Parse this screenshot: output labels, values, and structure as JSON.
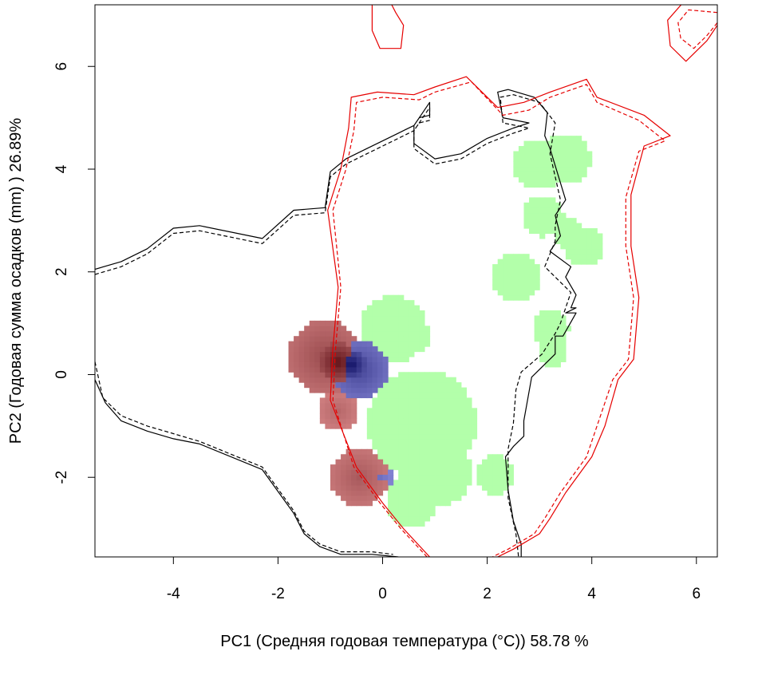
{
  "chart_data": {
    "type": "heatmap",
    "title": "",
    "xlabel": "PC1 (Средняя годовая температура (°C)) 58.78 %",
    "ylabel": "PC2 (Годовая сумма осадков  (mm) ) 26.89%",
    "xlim": [
      -5.5,
      6.4
    ],
    "ylim": [
      -3.55,
      7.2
    ],
    "x_ticks": [
      "-4",
      "-2",
      "0",
      "2",
      "4",
      "6"
    ],
    "x_tick_values": [
      -4,
      -2,
      0,
      2,
      4,
      6
    ],
    "y_ticks": [
      "-2",
      "0",
      "2",
      "4",
      "6"
    ],
    "y_tick_values": [
      -2,
      0,
      2,
      4,
      6
    ],
    "grid": false,
    "legend": "none",
    "colors": {
      "stable": "#b3ffaa",
      "expansion_low": "#e89898",
      "expansion_high": "#5a0c12",
      "unfilling_low": "#a0a0ee",
      "unfilling_high": "#0a0a5e",
      "envelope_a": "#000000",
      "envelope_b": "#e60000"
    },
    "stable_blobs": [
      {
        "x": 3.0,
        "y": 4.1,
        "r": 0.5
      },
      {
        "x": 3.5,
        "y": 4.2,
        "r": 0.48
      },
      {
        "x": 3.05,
        "y": 3.1,
        "r": 0.4
      },
      {
        "x": 3.85,
        "y": 2.5,
        "r": 0.38
      },
      {
        "x": 3.55,
        "y": 2.75,
        "r": 0.3
      },
      {
        "x": 2.55,
        "y": 1.9,
        "r": 0.45
      },
      {
        "x": 3.2,
        "y": 0.9,
        "r": 0.35
      },
      {
        "x": 3.25,
        "y": 0.45,
        "r": 0.3
      },
      {
        "x": 0.2,
        "y": 0.9,
        "r": 0.65
      },
      {
        "x": 0.6,
        "y": 0.75,
        "r": 0.35
      },
      {
        "x": 0.75,
        "y": -0.95,
        "r": 1.05
      },
      {
        "x": 1.05,
        "y": -1.9,
        "r": 0.65
      },
      {
        "x": 2.15,
        "y": -1.95,
        "r": 0.38
      },
      {
        "x": 0.55,
        "y": -2.45,
        "r": 0.5
      }
    ],
    "expansion_blobs": [
      {
        "x": -1.1,
        "y": 0.35,
        "r": 0.7,
        "i": 0.55
      },
      {
        "x": -0.85,
        "y": 0.25,
        "r": 0.38,
        "i": 0.95
      },
      {
        "x": -0.85,
        "y": -0.7,
        "r": 0.38,
        "i": 0.35
      },
      {
        "x": -0.45,
        "y": -2.0,
        "r": 0.55,
        "i": 0.45
      }
    ],
    "unfilling_blobs": [
      {
        "x": -0.45,
        "y": 0.1,
        "r": 0.55,
        "i": 0.6
      },
      {
        "x": -0.6,
        "y": 0.2,
        "r": 0.3,
        "i": 0.95
      },
      {
        "x": -0.1,
        "y": -2.0,
        "r": 0.3,
        "i": 0.35
      }
    ],
    "envelopes": [
      {
        "name": "",
        "color": "#000000",
        "dash": "solid",
        "x": [
          -5.5,
          -5.0,
          -4.5,
          -4.0,
          -3.5,
          -2.3,
          -1.7,
          -1.1,
          -1.0,
          -0.7,
          -0.3,
          0.3,
          0.6,
          0.7,
          0.9,
          0.9,
          0.6,
          0.6,
          1.0,
          1.5,
          2.0,
          2.5,
          2.8,
          2.3,
          2.2,
          2.4,
          2.9,
          3.15,
          3.1,
          3.2,
          3.5,
          3.3,
          3.4,
          3.2,
          3.6,
          3.5,
          3.7,
          3.6,
          3.7,
          3.5,
          3.7,
          3.7,
          3.45,
          3.3,
          3.3,
          2.85,
          2.7,
          2.7,
          2.5,
          2.35,
          2.4,
          2.5,
          2.65,
          2.65
        ],
        "y": [
          2.05,
          2.2,
          2.45,
          2.85,
          2.9,
          2.65,
          3.2,
          3.25,
          3.95,
          4.2,
          4.4,
          4.7,
          4.85,
          5.0,
          5.05,
          5.3,
          4.85,
          4.5,
          4.2,
          4.3,
          4.6,
          4.8,
          4.9,
          5.0,
          5.5,
          5.55,
          5.4,
          5.1,
          4.65,
          4.4,
          3.4,
          3.1,
          2.7,
          2.4,
          2.1,
          1.9,
          1.55,
          1.3,
          1.3,
          1.2,
          1.2,
          1.2,
          0.75,
          0.75,
          0.4,
          -0.05,
          -0.9,
          -1.2,
          -1.4,
          -1.6,
          -2.25,
          -2.85,
          -3.3,
          -3.55
        ]
      },
      {
        "name": "",
        "color": "#000000",
        "dash": "dashed",
        "x": [
          -5.5,
          -5.0,
          -4.5,
          -4.0,
          -3.5,
          -2.3,
          -1.7,
          -1.1,
          -1.0,
          -0.7,
          -0.3,
          0.3,
          0.6,
          0.7,
          0.9,
          0.9,
          0.6,
          0.6,
          1.0,
          1.5,
          2.0,
          2.5,
          2.8,
          2.3,
          2.25,
          2.5,
          3.0,
          3.3,
          3.2,
          3.4,
          3.3,
          3.3,
          3.1,
          3.6,
          3.5,
          3.4,
          3.3,
          3.05,
          2.65,
          2.55,
          2.5,
          2.4,
          2.4,
          2.55,
          2.6
        ],
        "y": [
          1.95,
          2.1,
          2.35,
          2.75,
          2.8,
          2.55,
          3.1,
          3.15,
          3.85,
          4.1,
          4.3,
          4.6,
          4.75,
          4.9,
          4.95,
          5.2,
          4.75,
          4.4,
          4.1,
          4.2,
          4.5,
          4.7,
          4.8,
          4.9,
          5.4,
          5.45,
          5.3,
          4.9,
          4.3,
          3.4,
          2.9,
          2.6,
          2.1,
          1.6,
          1.3,
          1.0,
          0.8,
          0.4,
          0.05,
          -0.3,
          -0.95,
          -1.45,
          -2.4,
          -3.1,
          -3.55
        ]
      },
      {
        "name": "",
        "color": "#000000",
        "dash": "solid",
        "x": [
          -5.5,
          -5.3,
          -5.0,
          -4.5,
          -4.0,
          -3.5,
          -2.3,
          -1.7,
          -1.5,
          -1.2,
          -0.8,
          -0.2,
          0.3
        ],
        "y": [
          -0.1,
          -0.55,
          -0.9,
          -1.1,
          -1.25,
          -1.35,
          -1.85,
          -2.7,
          -3.1,
          -3.35,
          -3.5,
          -3.5,
          -3.55
        ]
      },
      {
        "name": "",
        "color": "#000000",
        "dash": "dashed",
        "x": [
          -5.5,
          -5.35,
          -5.0,
          -4.5,
          -4.0,
          -3.5,
          -2.3,
          -1.7,
          -1.5,
          -1.2,
          -0.8,
          -0.2,
          0.2
        ],
        "y": [
          0.25,
          -0.45,
          -0.8,
          -1.0,
          -1.15,
          -1.3,
          -1.8,
          -2.65,
          -3.05,
          -3.3,
          -3.45,
          -3.45,
          -3.5
        ]
      },
      {
        "name": "",
        "color": "#e60000",
        "dash": "solid",
        "x": [
          0.9,
          0.4,
          0.0,
          -0.5,
          -1.0,
          -0.95,
          -0.85,
          -1.05,
          -0.8,
          -0.65,
          -0.6,
          -0.1,
          0.6,
          1.0,
          1.6,
          2.2,
          2.7,
          3.2,
          3.9,
          4.1,
          5.0,
          5.5,
          5.0,
          4.75,
          4.75,
          4.9,
          4.8,
          4.5,
          4.25,
          4.0,
          3.5,
          3.2,
          3.0,
          2.5,
          2.2
        ],
        "y": [
          -3.55,
          -3.0,
          -2.5,
          -1.8,
          -0.5,
          0.5,
          1.7,
          3.2,
          4.0,
          4.8,
          5.4,
          5.5,
          5.45,
          5.6,
          5.8,
          5.2,
          5.3,
          5.5,
          5.75,
          5.4,
          5.05,
          4.65,
          4.45,
          3.5,
          2.5,
          1.5,
          0.3,
          -0.1,
          -1.0,
          -1.6,
          -2.3,
          -2.8,
          -3.1,
          -3.4,
          -3.55
        ]
      },
      {
        "name": "",
        "color": "#e60000",
        "dash": "dashed",
        "x": [
          0.85,
          0.35,
          -0.05,
          -0.55,
          -0.95,
          -0.9,
          -0.8,
          -0.95,
          -0.7,
          -0.55,
          -0.5,
          0.0,
          0.7,
          1.0,
          1.7,
          2.3,
          2.8,
          3.2,
          3.9,
          4.1,
          4.9,
          5.4,
          4.9,
          4.65,
          4.65,
          4.8,
          4.7,
          4.4,
          4.1,
          3.9,
          3.4,
          3.1,
          2.9,
          2.4,
          2.1
        ],
        "y": [
          -3.55,
          -3.0,
          -2.5,
          -1.8,
          -0.5,
          0.5,
          1.7,
          3.2,
          4.0,
          4.75,
          5.3,
          5.4,
          5.35,
          5.5,
          5.7,
          5.05,
          5.15,
          5.4,
          5.65,
          5.3,
          4.95,
          4.55,
          4.35,
          3.45,
          2.5,
          1.5,
          0.3,
          -0.1,
          -1.0,
          -1.6,
          -2.3,
          -2.8,
          -3.1,
          -3.4,
          -3.55
        ]
      },
      {
        "name": "",
        "color": "#e60000",
        "dash": "solid",
        "x": [
          -0.2,
          -0.2,
          -0.05,
          0.35,
          0.4,
          0.25,
          0.15,
          -0.1,
          -0.2
        ],
        "y": [
          7.2,
          6.7,
          6.35,
          6.35,
          6.8,
          7.05,
          7.25,
          7.25,
          7.2
        ]
      },
      {
        "name": "",
        "color": "#e60000",
        "dash": "solid",
        "x": [
          6.4,
          5.75,
          5.45,
          5.5,
          5.8,
          6.2,
          6.4
        ],
        "y": [
          7.2,
          7.25,
          6.9,
          6.4,
          6.1,
          6.5,
          6.8
        ]
      },
      {
        "name": "",
        "color": "#e60000",
        "dash": "dashed",
        "x": [
          6.4,
          5.85,
          5.65,
          5.7,
          5.95,
          6.2,
          6.4
        ],
        "y": [
          7.05,
          7.1,
          6.85,
          6.55,
          6.35,
          6.6,
          6.85
        ]
      }
    ]
  }
}
